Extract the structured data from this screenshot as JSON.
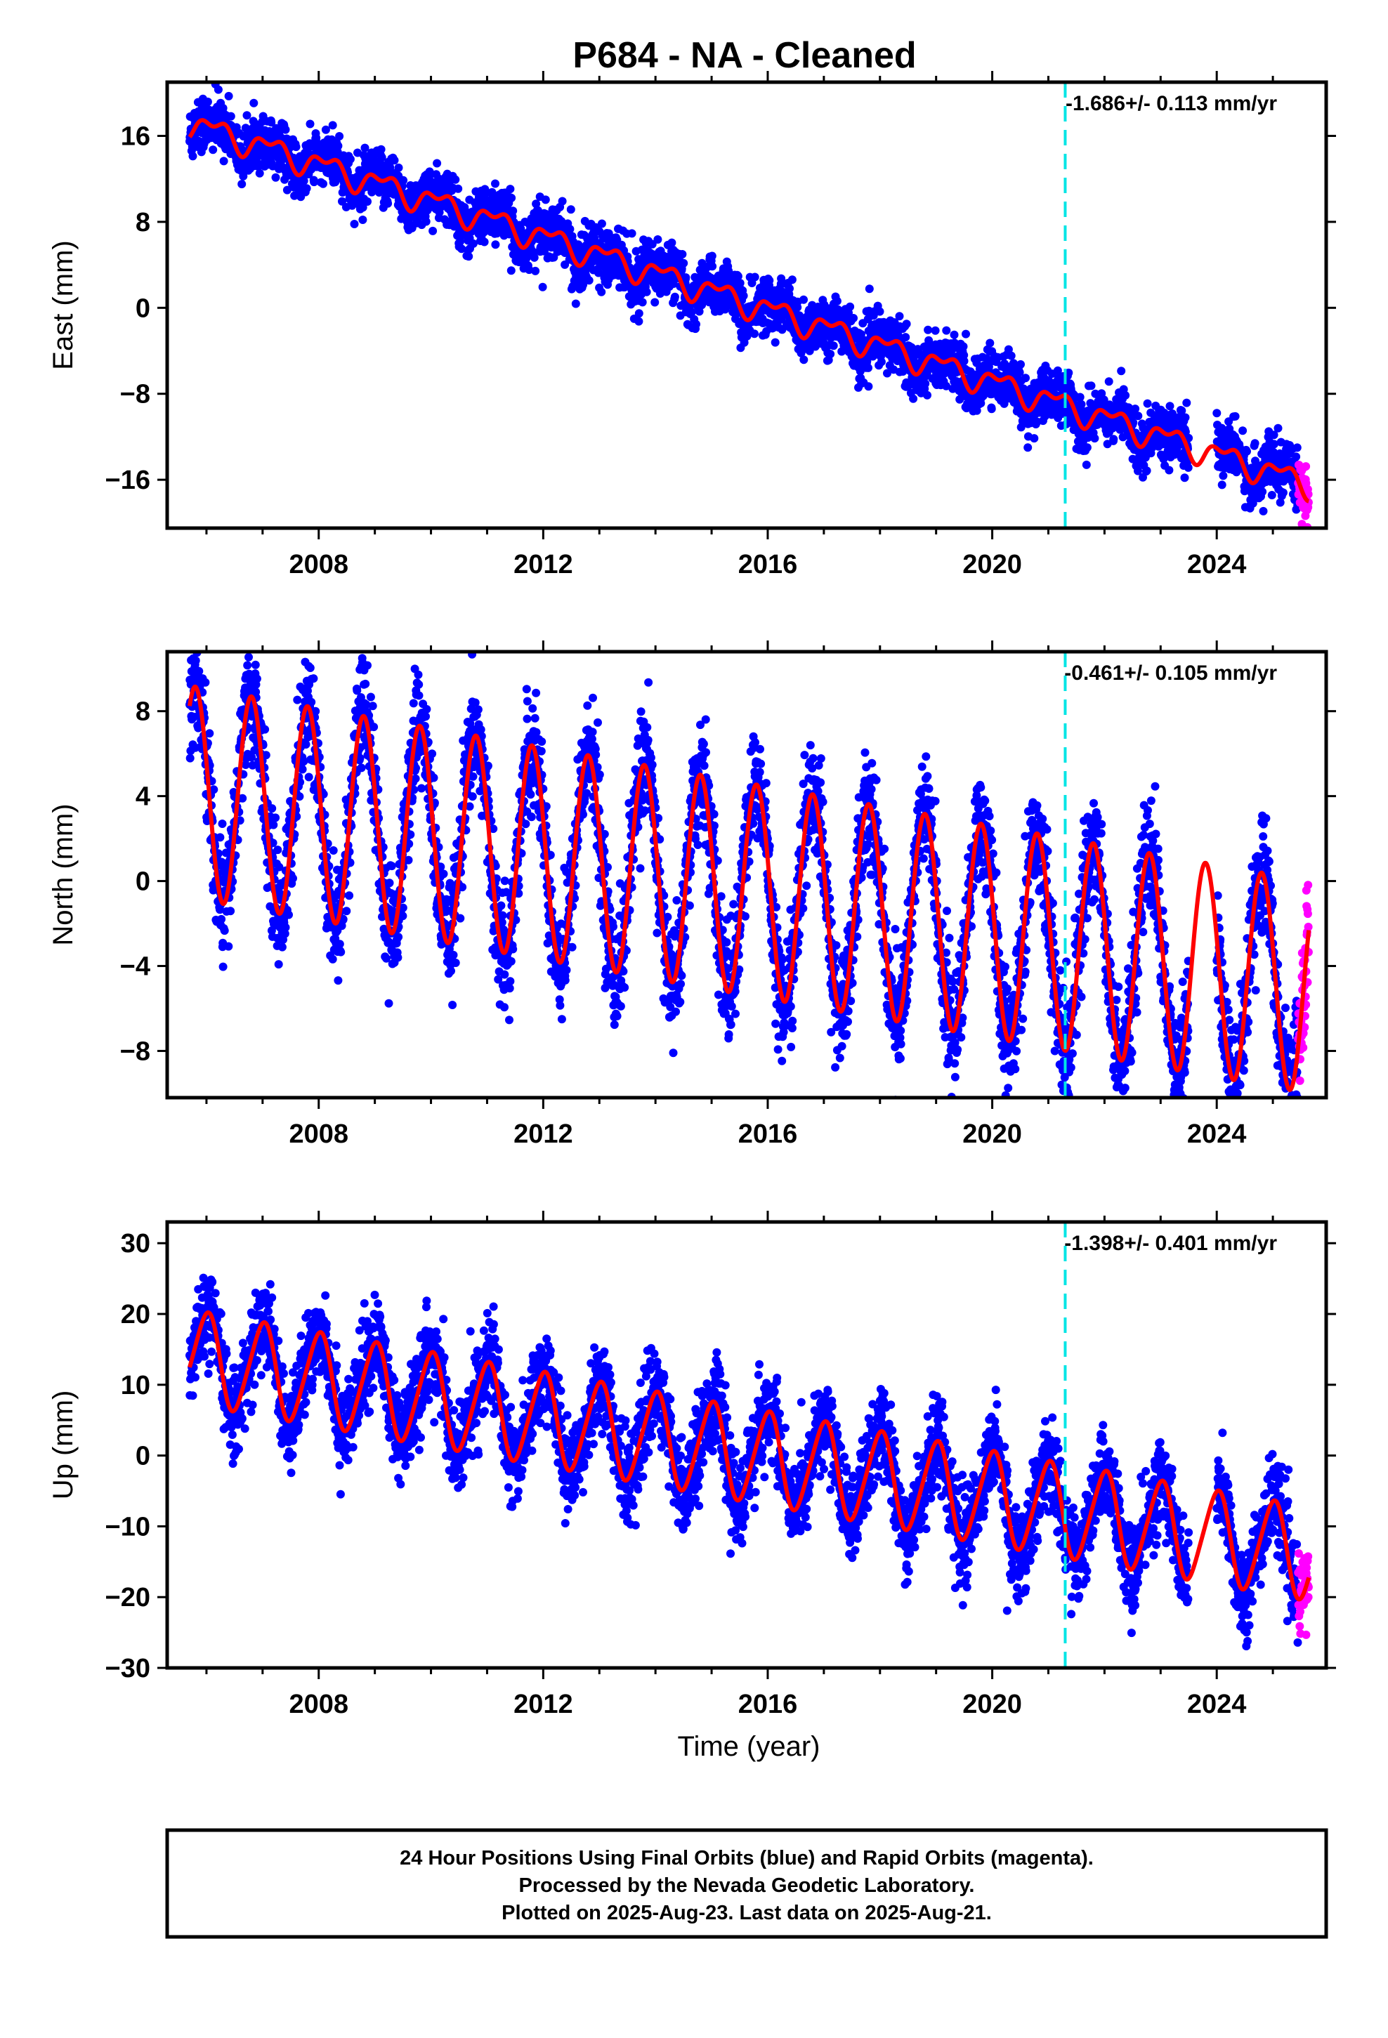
{
  "title": "P684  - NA - Cleaned",
  "colors": {
    "final_orbits": "#0000ff",
    "rapid_orbits": "#ff00ff",
    "model_fit": "#ff0000",
    "event_line": "#00e5e5",
    "frame": "#000000"
  },
  "xlabel": "Time (year)",
  "footer": {
    "line1": "24 Hour Positions Using Final Orbits (blue) and Rapid Orbits (magenta).",
    "line2": "Processed by the Nevada Geodetic Laboratory.",
    "line3": "Plotted on 2025-Aug-23. Last data on 2025-Aug-21."
  },
  "chart_data": [
    {
      "type": "scatter",
      "component": "east",
      "ylabel": "East (mm)",
      "rate_text": "-1.686+/- 0.113 mm/yr",
      "rate_mm_per_yr": -1.686,
      "rate_sigma": 0.113,
      "xlim": [
        2005.3,
        2025.95
      ],
      "ylim": [
        -20.5,
        21
      ],
      "xticks": [
        2008,
        2012,
        2016,
        2020,
        2024
      ],
      "xtick_labels": [
        "2008",
        "2012",
        "2016",
        "2020",
        "2024"
      ],
      "yticks": [
        16,
        8,
        0,
        -8,
        -16
      ],
      "ytick_labels": [
        "16",
        "8",
        "0",
        "−8",
        "−16"
      ],
      "event_line_x": 2021.3,
      "data_start": 2005.7,
      "rapid_start": 2025.45,
      "data_end": 2025.64,
      "gap": [
        2023.5,
        2024.0
      ],
      "model": {
        "intercept_2005_7": 17.2,
        "rate": -1.686,
        "annual_amp": 1.0,
        "annual_phase_year": 0.9,
        "semiannual_amp": 0.6,
        "semiannual_phase_year": 0.75
      },
      "noise_mm": 1.2,
      "grid": false,
      "legend": "none"
    },
    {
      "type": "scatter",
      "component": "north",
      "ylabel": "North (mm)",
      "rate_text": "-0.461+/- 0.105 mm/yr",
      "rate_mm_per_yr": -0.461,
      "rate_sigma": 0.105,
      "xlim": [
        2005.3,
        2025.95
      ],
      "ylim": [
        -10.2,
        10.8
      ],
      "xticks": [
        2008,
        2012,
        2016,
        2020,
        2024
      ],
      "xtick_labels": [
        "2008",
        "2012",
        "2016",
        "2020",
        "2024"
      ],
      "yticks": [
        8,
        4,
        0,
        -4,
        -8
      ],
      "ytick_labels": [
        "8",
        "4",
        "0",
        "−4",
        "−8"
      ],
      "event_line_x": 2021.3,
      "data_start": 2005.7,
      "rapid_start": 2025.45,
      "data_end": 2025.64,
      "gap": [
        2023.5,
        2024.0
      ],
      "model": {
        "intercept_2005_7": 4.2,
        "rate": -0.461,
        "annual_amp": 5.0,
        "annual_phase_year": 0.55,
        "semiannual_amp": 0.0,
        "semiannual_phase_year": 0.0
      },
      "noise_mm": 1.3,
      "grid": false,
      "legend": "none"
    },
    {
      "type": "scatter",
      "component": "up",
      "ylabel": "Up (mm)",
      "rate_text": "-1.398+/- 0.401 mm/yr",
      "rate_mm_per_yr": -1.398,
      "rate_sigma": 0.401,
      "xlim": [
        2005.3,
        2025.95
      ],
      "ylim": [
        -30,
        33
      ],
      "xticks": [
        2008,
        2012,
        2016,
        2020,
        2024
      ],
      "xtick_labels": [
        "2008",
        "2012",
        "2016",
        "2020",
        "2024"
      ],
      "yticks": [
        30,
        20,
        10,
        0,
        -10,
        -20,
        -30
      ],
      "ytick_labels": [
        "30",
        "20",
        "10",
        "0",
        "−10",
        "−20",
        "−30"
      ],
      "event_line_x": 2021.3,
      "data_start": 2005.7,
      "rapid_start": 2025.45,
      "data_end": 2025.64,
      "gap": [
        2023.5,
        2024.0
      ],
      "model": {
        "intercept_2005_7": 14.0,
        "rate": -1.398,
        "annual_amp": 6.5,
        "annual_phase_year": 0.75,
        "semiannual_amp": 0.8,
        "semiannual_phase_year": 0.5
      },
      "noise_mm": 3.0,
      "grid": false,
      "legend": "none"
    }
  ]
}
